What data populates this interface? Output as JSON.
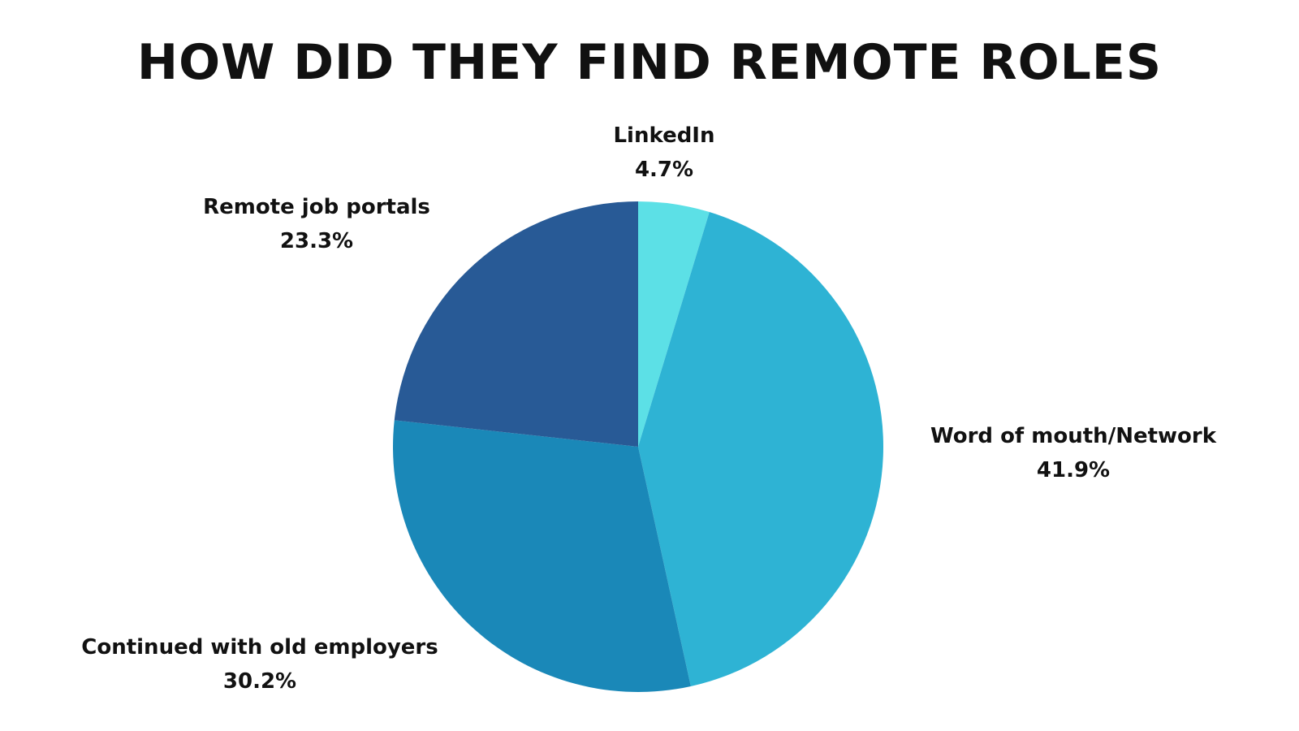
{
  "chart_data": {
    "type": "pie",
    "title": "HOW DID THEY FIND REMOTE ROLES",
    "slices": [
      {
        "name": "LinkedIn",
        "value": 4.7,
        "label": "4.7%",
        "color": "#5ce0e6"
      },
      {
        "name": "Word of mouth/Network",
        "value": 41.9,
        "label": "41.9%",
        "color": "#2eb3d4"
      },
      {
        "name": "Continued with old employers",
        "value": 30.2,
        "label": "30.2%",
        "color": "#1a88b8"
      },
      {
        "name": "Remote job portals",
        "value": 23.3,
        "label": "23.3%",
        "color": "#285a96"
      }
    ],
    "start_angle": "12 o'clock",
    "direction": "clockwise",
    "legend": "none"
  }
}
